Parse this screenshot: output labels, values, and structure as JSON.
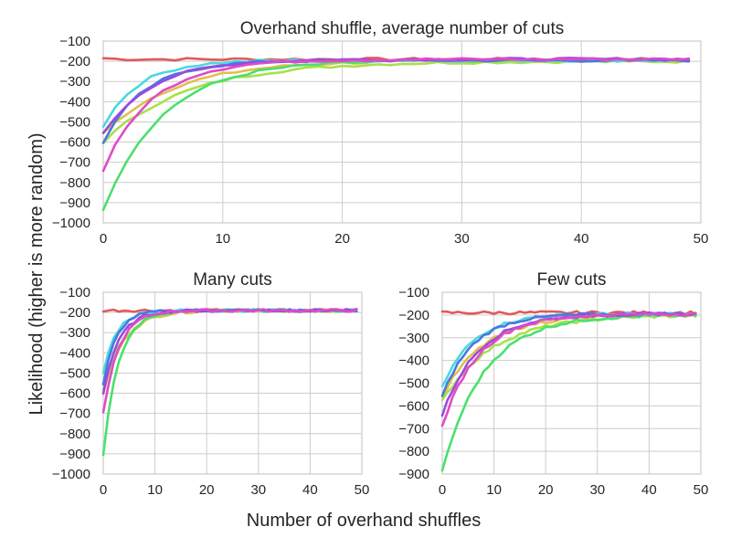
{
  "figure": {
    "ylabel": "Likelihood (higher is more random)",
    "xlabel": "Number of overhand shuffles",
    "line_colors": [
      "#e05a5a",
      "#e0c04a",
      "#a8e04a",
      "#4ae06e",
      "#4ad8e0",
      "#4a78e0",
      "#9a4ae0",
      "#e04ac8"
    ]
  },
  "chart_data": [
    {
      "type": "line",
      "title": "Overhand shuffle, average number of cuts",
      "xlim": [
        0,
        50
      ],
      "ylim": [
        -1000,
        -100
      ],
      "xticks": [
        "0",
        "10",
        "20",
        "30",
        "40",
        "50"
      ],
      "yticks": [
        "−100",
        "−200",
        "−300",
        "−400",
        "−500",
        "−600",
        "−700",
        "−800",
        "−900",
        "−1000"
      ],
      "grid": true,
      "series": [
        {
          "color": "#e05a5a",
          "start": -185,
          "end": -190,
          "k": 1
        },
        {
          "color": "#e0c04a",
          "start": -560,
          "end": -195,
          "k": 6
        },
        {
          "color": "#a8e04a",
          "start": -600,
          "end": -200,
          "k": 7
        },
        {
          "color": "#4ae06e",
          "start": -930,
          "end": -195,
          "k": 5
        },
        {
          "color": "#4ad8e0",
          "start": -520,
          "end": -195,
          "k": 3
        },
        {
          "color": "#4a78e0",
          "start": -600,
          "end": -195,
          "k": 3.5
        },
        {
          "color": "#9a4ae0",
          "start": -560,
          "end": -190,
          "k": 4
        },
        {
          "color": "#e04ac8",
          "start": -740,
          "end": -190,
          "k": 4
        }
      ]
    },
    {
      "type": "line",
      "title": "Many cuts",
      "xlim": [
        0,
        50
      ],
      "ylim": [
        -1000,
        -100
      ],
      "xticks": [
        "0",
        "10",
        "20",
        "30",
        "40",
        "50"
      ],
      "yticks": [
        "−100",
        "−200",
        "−300",
        "−400",
        "−500",
        "−600",
        "−700",
        "−800",
        "−900",
        "−1000"
      ],
      "grid": true,
      "series": [
        {
          "color": "#e05a5a",
          "start": -190,
          "end": -190,
          "k": 1
        },
        {
          "color": "#e0c04a",
          "start": -600,
          "end": -190,
          "k": 4
        },
        {
          "color": "#a8e04a",
          "start": -580,
          "end": -190,
          "k": 4
        },
        {
          "color": "#4ae06e",
          "start": -900,
          "end": -190,
          "k": 3
        },
        {
          "color": "#4ad8e0",
          "start": -500,
          "end": -190,
          "k": 2.5
        },
        {
          "color": "#4a78e0",
          "start": -560,
          "end": -190,
          "k": 2.5
        },
        {
          "color": "#9a4ae0",
          "start": -600,
          "end": -190,
          "k": 3
        },
        {
          "color": "#e04ac8",
          "start": -700,
          "end": -190,
          "k": 3
        }
      ]
    },
    {
      "type": "line",
      "title": "Few cuts",
      "xlim": [
        0,
        50
      ],
      "ylim": [
        -900,
        -100
      ],
      "xticks": [
        "0",
        "10",
        "20",
        "30",
        "40",
        "50"
      ],
      "yticks": [
        "−100",
        "−200",
        "−300",
        "−400",
        "−500",
        "−600",
        "−700",
        "−800",
        "−900"
      ],
      "grid": true,
      "series": [
        {
          "color": "#e05a5a",
          "start": -190,
          "end": -190,
          "k": 1
        },
        {
          "color": "#e0c04a",
          "start": -560,
          "end": -200,
          "k": 8
        },
        {
          "color": "#a8e04a",
          "start": -580,
          "end": -200,
          "k": 10
        },
        {
          "color": "#4ae06e",
          "start": -890,
          "end": -200,
          "k": 8
        },
        {
          "color": "#4ad8e0",
          "start": -520,
          "end": -195,
          "k": 6
        },
        {
          "color": "#4a78e0",
          "start": -560,
          "end": -195,
          "k": 6
        },
        {
          "color": "#9a4ae0",
          "start": -640,
          "end": -195,
          "k": 7
        },
        {
          "color": "#e04ac8",
          "start": -690,
          "end": -195,
          "k": 7
        }
      ]
    }
  ]
}
